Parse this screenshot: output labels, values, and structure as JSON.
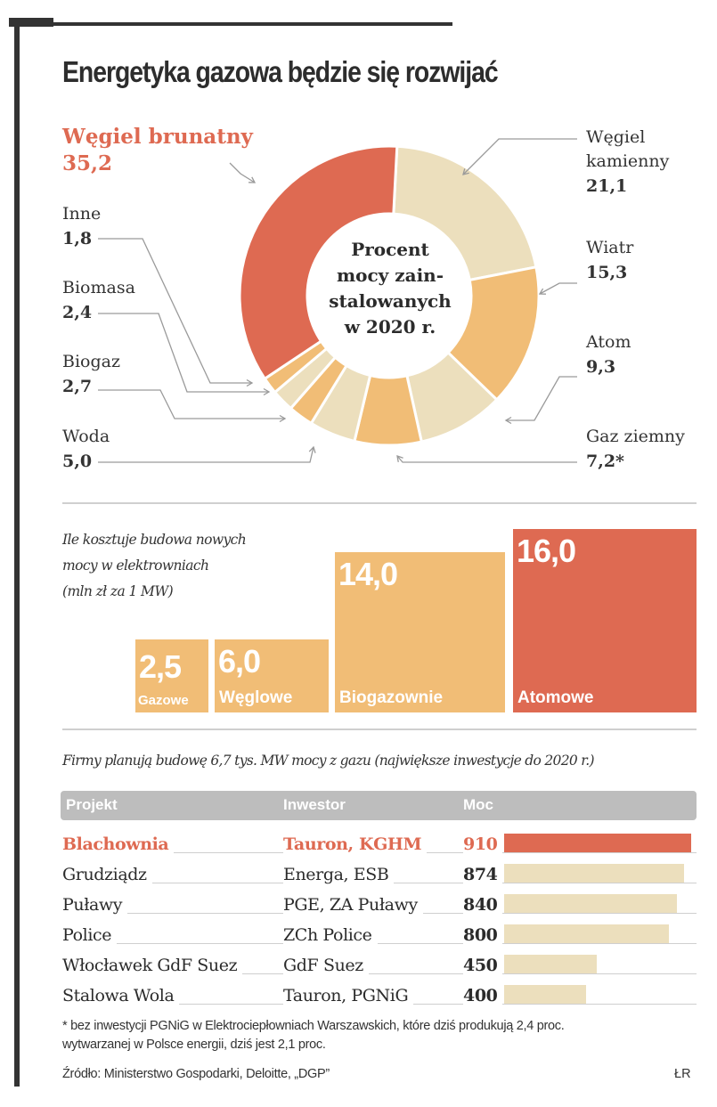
{
  "title": "Energetyka gazowa będzie się rozwijać",
  "colors": {
    "red": "#de6a52",
    "orange": "#f1bd76",
    "beige": "#ecdfbd",
    "grey_header": "#bdbdbd",
    "leader": "#9a9a9a"
  },
  "chart_data": [
    {
      "type": "pie",
      "variant": "donut",
      "title": "Procent mocy zainstalowanych w 2020 r.",
      "center_label_lines": [
        "Procent",
        "mocy zain-",
        "stalowanych",
        "w 2020 r."
      ],
      "unit": "%",
      "start": "top, clockwise",
      "slices": [
        {
          "label": "Węgiel kamienny",
          "value": 21.1,
          "display": "21,1",
          "color": "#ecdfbd"
        },
        {
          "label": "Wiatr",
          "value": 15.3,
          "display": "15,3",
          "color": "#f1bd76"
        },
        {
          "label": "Atom",
          "value": 9.3,
          "display": "9,3",
          "color": "#ecdfbd"
        },
        {
          "label": "Gaz ziemny",
          "value": 7.2,
          "display": "7,2*",
          "color": "#f1bd76"
        },
        {
          "label": "Woda",
          "value": 5.0,
          "display": "5,0",
          "color": "#ecdfbd"
        },
        {
          "label": "Biogaz",
          "value": 2.7,
          "display": "2,7",
          "color": "#f1bd76"
        },
        {
          "label": "Biomasa",
          "value": 2.4,
          "display": "2,4",
          "color": "#ecdfbd"
        },
        {
          "label": "Inne",
          "value": 1.8,
          "display": "1,8",
          "color": "#f1bd76"
        },
        {
          "label": "Węgiel brunatny",
          "value": 35.2,
          "display": "35,2",
          "color": "#de6a52",
          "highlight": true
        }
      ]
    },
    {
      "type": "bar",
      "title": "Ile kosztuje budowa nowych mocy w elektrowniach (mln zł za 1 MW)",
      "title_lines": [
        "Ile kosztuje budowa nowych",
        "mocy w elektrowniach",
        "(mln zł za 1 MW)"
      ],
      "categories": [
        "Gazowe",
        "Węglowe",
        "Biogazownie",
        "Atomowe"
      ],
      "values": [
        2.5,
        6.0,
        14.0,
        16.0
      ],
      "display": [
        "2,5",
        "6,0",
        "14,0",
        "16,0"
      ],
      "colors": [
        "#f1bd76",
        "#f1bd76",
        "#f1bd76",
        "#de6a52"
      ],
      "unit": "mln zł za 1 MW"
    },
    {
      "type": "table",
      "title": "Firmy planują budowę 6,7 tys. MW mocy z gazu (największe inwestycje do 2020 r.)",
      "columns": [
        "Projekt",
        "Inwestor",
        "Moc"
      ],
      "rows": [
        {
          "projekt": "Blachownia",
          "inwestor": "Tauron, KGHM",
          "moc": 910,
          "highlight": true
        },
        {
          "projekt": "Grudziądz",
          "inwestor": "Energa, ESB",
          "moc": 874
        },
        {
          "projekt": "Puławy",
          "inwestor": "PGE, ZA Puławy",
          "moc": 840
        },
        {
          "projekt": "Police",
          "inwestor": "ZCh Police",
          "moc": 800
        },
        {
          "projekt": "Włocławek GdF Suez",
          "inwestor": "GdF Suez",
          "moc": 450
        },
        {
          "projekt": "Stalowa Wola",
          "inwestor": "Tauron, PGNiG",
          "moc": 400
        }
      ],
      "bar_max": 910
    }
  ],
  "footnote_lines": [
    "* bez inwestycji PGNiG w Elektrociepłowniach Warszawskich, które dziś produkują 2,4 proc.",
    "wytwarzanej w Polsce energii, dziś jest 2,1 proc."
  ],
  "source": "Źródło: Ministerstwo Gospodarki, Deloitte, „DGP”",
  "author": "ŁR"
}
